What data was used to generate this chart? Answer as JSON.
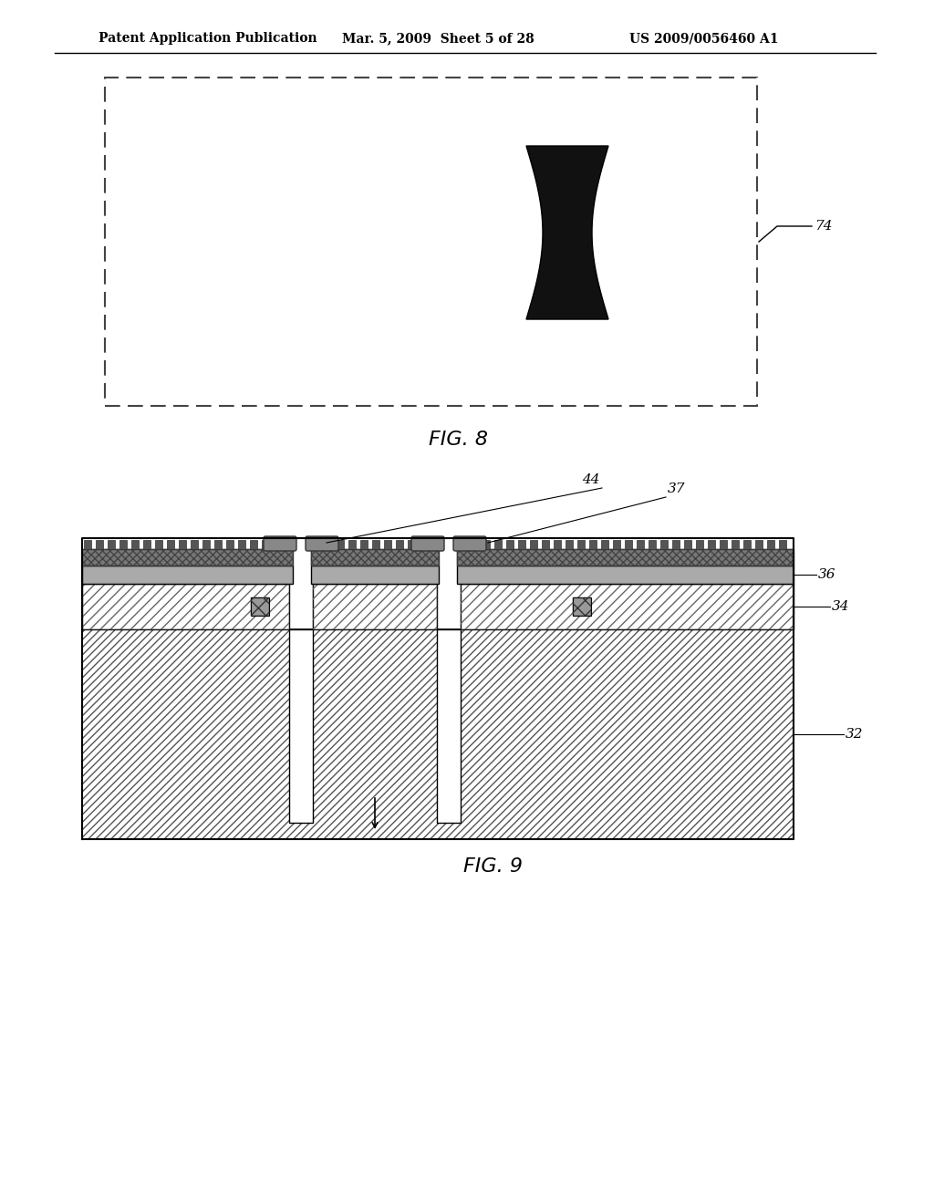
{
  "header_left": "Patent Application Publication",
  "header_mid": "Mar. 5, 2009  Sheet 5 of 28",
  "header_right": "US 2009/0056460 A1",
  "fig8_label": "FIG. 8",
  "fig9_label": "FIG. 9",
  "label_74": "74",
  "label_44": "44",
  "label_37": "37",
  "label_36": "36",
  "label_34": "34",
  "label_32": "32",
  "bg_color": "#ffffff",
  "line_color": "#000000",
  "fig8_label_fontsize": 16,
  "fig9_label_fontsize": 16,
  "header_fontsize": 10,
  "annotation_fontsize": 11
}
